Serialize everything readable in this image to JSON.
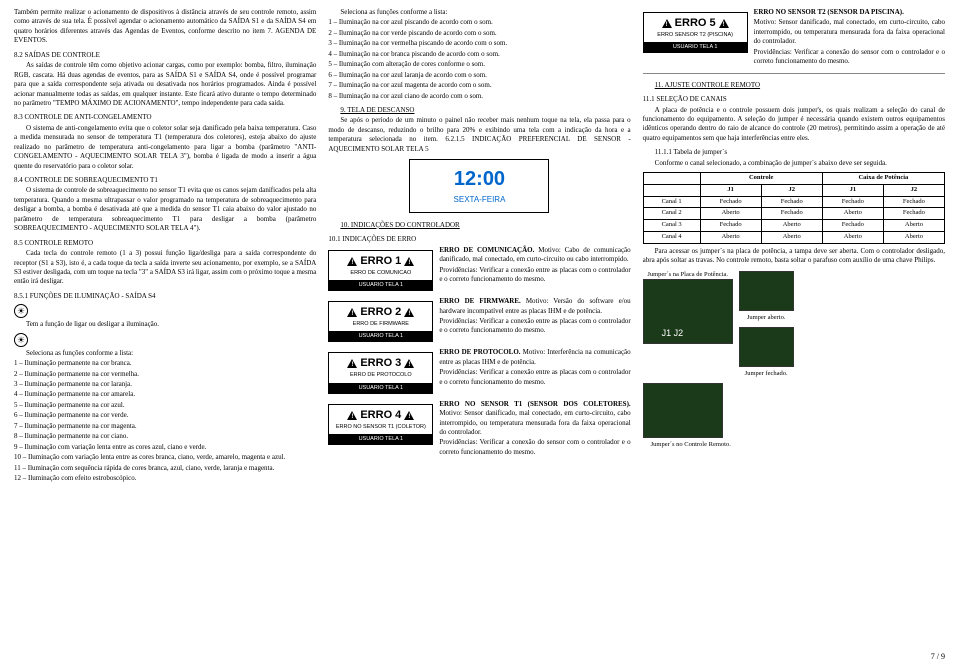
{
  "col1": {
    "p1": "Também permite realizar o acionamento de dispositivos à distância através de seu controle remoto, assim como através de sua tela. É possível agendar o acionamento automático da SAÍDA S1 e da SAÍDA S4 em quatro horários diferentes através das Agendas de Eventos, conforme descrito no item 7. AGENDA DE EVENTOS.",
    "s82": "8.2 SAÍDAS DE CONTROLE",
    "p82": "As saídas de controle têm como objetivo acionar cargas, como por exemplo: bomba, filtro, iluminação RGB, cascata. Há duas agendas de eventos, para as SAÍDA S1 e SAÍDA S4, onde é possível programar para que a saída correspondente seja ativada ou desativada nos horários programados. Ainda é possível acionar manualmente todas as saídas, em qualquer instante. Este ficará ativo durante o tempo determinado no parâmetro \"TEMPO MÁXIMO DE ACIONAMENTO\", tempo independente para cada saída.",
    "s83": "8.3 CONTROLE DE ANTI-CONGELAMENTO",
    "p83": "O sistema de anti-congelamento evita que o coletor solar seja danificado pela baixa temperatura. Caso a medida mensurada no sensor de temperatura T1 (temperatura dos coletores), esteja abaixo do ajuste realizado no parâmetro de temperatura anti-congelamento para ligar a bomba (parâmetro \"ANTI-CONGELAMENTO - AQUECIMENTO SOLAR TELA 3\"), bomba é ligada de modo a inserir a água quente do reservatório para o coletor solar.",
    "s84": "8.4 CONTROLE DE SOBREAQUECIMENTO T1",
    "p84": "O sistema de controle de sobreaquecimento no sensor T1 evita que os canos sejam danificados pela alta temperatura. Quando a mesma ultrapassar o valor programado na temperatura de sobreaquecimento para desligar a bomba, a bomba é desativada até que a medida do sensor T1 caia abaixo do valor ajustado no parâmetro de temperatura sobreaquecimento T1 para desligar a bomba (parâmetro SOBREAQUECIMENTO - AQUECIMENTO SOLAR TELA 4\").",
    "s85": "8.5 CONTROLE REMOTO",
    "p85": "Cada tecla do controle remoto (1 a 3) possui função liga/desliga para a saída correspondente do receptor (S1 a S3), isto é, a cada toque da tecla a saída inverte seu acionamento, por exemplo, se a SAÍDA S3 estiver desligada, com um toque na tecla \"3\" a SAÍDA S3 irá ligar, assim com o próximo toque a mesma então irá desligar.",
    "s851": "8.5.1 FUNÇÕES DE ILUMINAÇÃO - SAÍDA S4",
    "sun1": "Tem a função de ligar ou desligar a iluminação.",
    "sun2": "Seleciona as funções conforme a lista:",
    "li": [
      "1 – Iluminação permanente na cor branca.",
      "2 – Iluminação permanente na cor vermelha.",
      "3 – Iluminação permanente na cor laranja.",
      "4 – Iluminação permanente na cor amarela.",
      "5 – Iluminação permanente na cor azul.",
      "6 – Iluminação permanente na cor verde.",
      "7 – Iluminação permanente na cor magenta.",
      "8 – Iluminação permanente na cor ciano.",
      "9 – Iluminação com variação lenta entre as cores azul, ciano e verde.",
      "10 – Iluminação com variação lenta entre as cores branca, ciano, verde, amarelo, magenta e azul.",
      "11 – Iluminação com sequência rápida de cores branca, azul, ciano, verde, laranja e magenta.",
      "12 – Iluminação com efeito estroboscópico."
    ]
  },
  "col2": {
    "head": "Seleciona as funções conforme a lista:",
    "li2": [
      "1 – Iluminação na cor azul piscando de acordo com o som.",
      "2 – Iluminação na cor verde piscando de acordo com o som.",
      "3 – Iluminação na cor vermelha piscando de acordo com o som.",
      "4 – Iluminação na cor branca piscando de acordo com o som.",
      "5 – Iluminação com alteração de cores conforme o som.",
      "6 – Iluminação na cor azul laranja de acordo com o som.",
      "7 – Iluminação na cor azul magenta de acordo com o som.",
      "8 – Iluminação na cor azul ciano de acordo com o som."
    ],
    "s9": "9. TELA DE DESCANSO",
    "p9": "Se após o período de um minuto o painel não receber mais nenhum toque na tela, ela passa para o modo de descanso, reduzindo o brilho para 20% e exibindo uma tela com a indicação da hora e a temperatura selecionada no item. 6.2.1.5 INDICAÇÃO PREFERENCIAL DE SENSOR - AQUECIMENTO SOLAR TELA 5",
    "time": "12:00",
    "day": "SEXTA-FEIRA",
    "s10": "10. INDICAÇÕES DO CONTROLADOR",
    "s101": "10.1 INDICAÇÕES DE ERRO",
    "errs": [
      {
        "t": "ERRO 1",
        "s": "ERRO DE COMUNICAO",
        "u": "USUARIO TELA 1",
        "h": "ERRO DE COMUNICAÇÃO.",
        "m": "Motivo: Cabo de comunicação danificado, mal conectado, em curto-circuito ou cabo interrompido.",
        "pr": "Providências: Verificar a conexão entre as placas com o controlador e o correto funcionamento do mesmo."
      },
      {
        "t": "ERRO 2",
        "s": "ERRO DE FIRMWARE",
        "u": "USUARIO TELA 1",
        "h": "ERRO DE FIRMWARE.",
        "m": "Motivo: Versão do software e/ou hardware incompatível entre as placas IHM e de potência.",
        "pr": "Providências: Verificar a conexão entre as placas com o controlador e o correto funcionamento do mesmo."
      },
      {
        "t": "ERRO 3",
        "s": "ERRO DE PROTOCOLO",
        "u": "USUARIO TELA 1",
        "h": "ERRO DE PROTOCOLO.",
        "m": "Motivo: Interferência na comunicação entre as placas IHM e de potência.",
        "pr": "Providências: Verificar a conexão entre as placas com o controlador e o correto funcionamento do mesmo."
      },
      {
        "t": "ERRO 4",
        "s": "ERRO NO SENSOR T1 (COLETOR)",
        "u": "USUARIO TELA 1",
        "h": "ERRO NO SENSOR T1 (SENSOR DOS COLETORES).",
        "m": "Motivo: Sensor danificado, mal conectado, em curto-circuito, cabo interrompido, ou temperatura mensurada fora da faixa operacional do controlador.",
        "pr": "Providências: Verificar a conexão do sensor com o controlador e o correto funcionamento do mesmo."
      }
    ]
  },
  "col3": {
    "err5": {
      "t": "ERRO 5",
      "s": "ERRO SENSOR T2 (PISCINA)",
      "u": "USUARIO TELA 1",
      "h": "ERRO NO SENSOR T2 (SENSOR DA PISCINA).",
      "m": "Motivo: Sensor danificado, mal conectado, em curto-circuito, cabo interrompido, ou temperatura mensurada fora da faixa operacional do controlador.",
      "pr": "Providências: Verificar a conexão do sensor com o controlador e o correto funcionamento do mesmo."
    },
    "s11": "11. AJUSTE CONTROLE REMOTO",
    "s111": "11.1 SELEÇÃO DE CANAIS",
    "p111": "A placa de potência e o controle possuem dois jumper's, os quais realizam a seleção do canal de funcionamento do equipamento. A seleção do jumper é necessária quando existem outros equipamentos idênticos operando dentro do raio de alcance do controle (20 metros), permitindo assim a operação de até quatro equipamentos sem que haja interferências entre eles.",
    "s1111": "11.1.1 Tabela de jumper´s",
    "p1111": "Conforme o canal selecionado, a combinação de jumper´s abaixo deve ser seguida.",
    "tbl": {
      "h1": "Controle",
      "h2": "Caixa de Potência",
      "cols": [
        "",
        "J1",
        "J2",
        "J1",
        "J2"
      ],
      "rows": [
        [
          "Canal 1",
          "Fechado",
          "Fechado",
          "Fechado",
          "Fechado"
        ],
        [
          "Canal 2",
          "Aberto",
          "Fechado",
          "Aberto",
          "Fechado"
        ],
        [
          "Canal 3",
          "Fechado",
          "Aberto",
          "Fechado",
          "Aberto"
        ],
        [
          "Canal 4",
          "Aberto",
          "Aberto",
          "Aberto",
          "Aberto"
        ]
      ]
    },
    "pacc": "Para acessar os jumper´s na placa de potência, a tampa deve ser aberta. Com o controlador desligado, abra após soltar as travas. No controle remoto, basta soltar o parafuso com auxílio de uma chave Philips.",
    "jp1": "Jumper´s na Placa de Potência.",
    "jopen": "Jumper aberto.",
    "jclosed": "Jumper fechado.",
    "jp2": "Jumper´s no Controle Remoto.",
    "page": "7 / 9"
  }
}
